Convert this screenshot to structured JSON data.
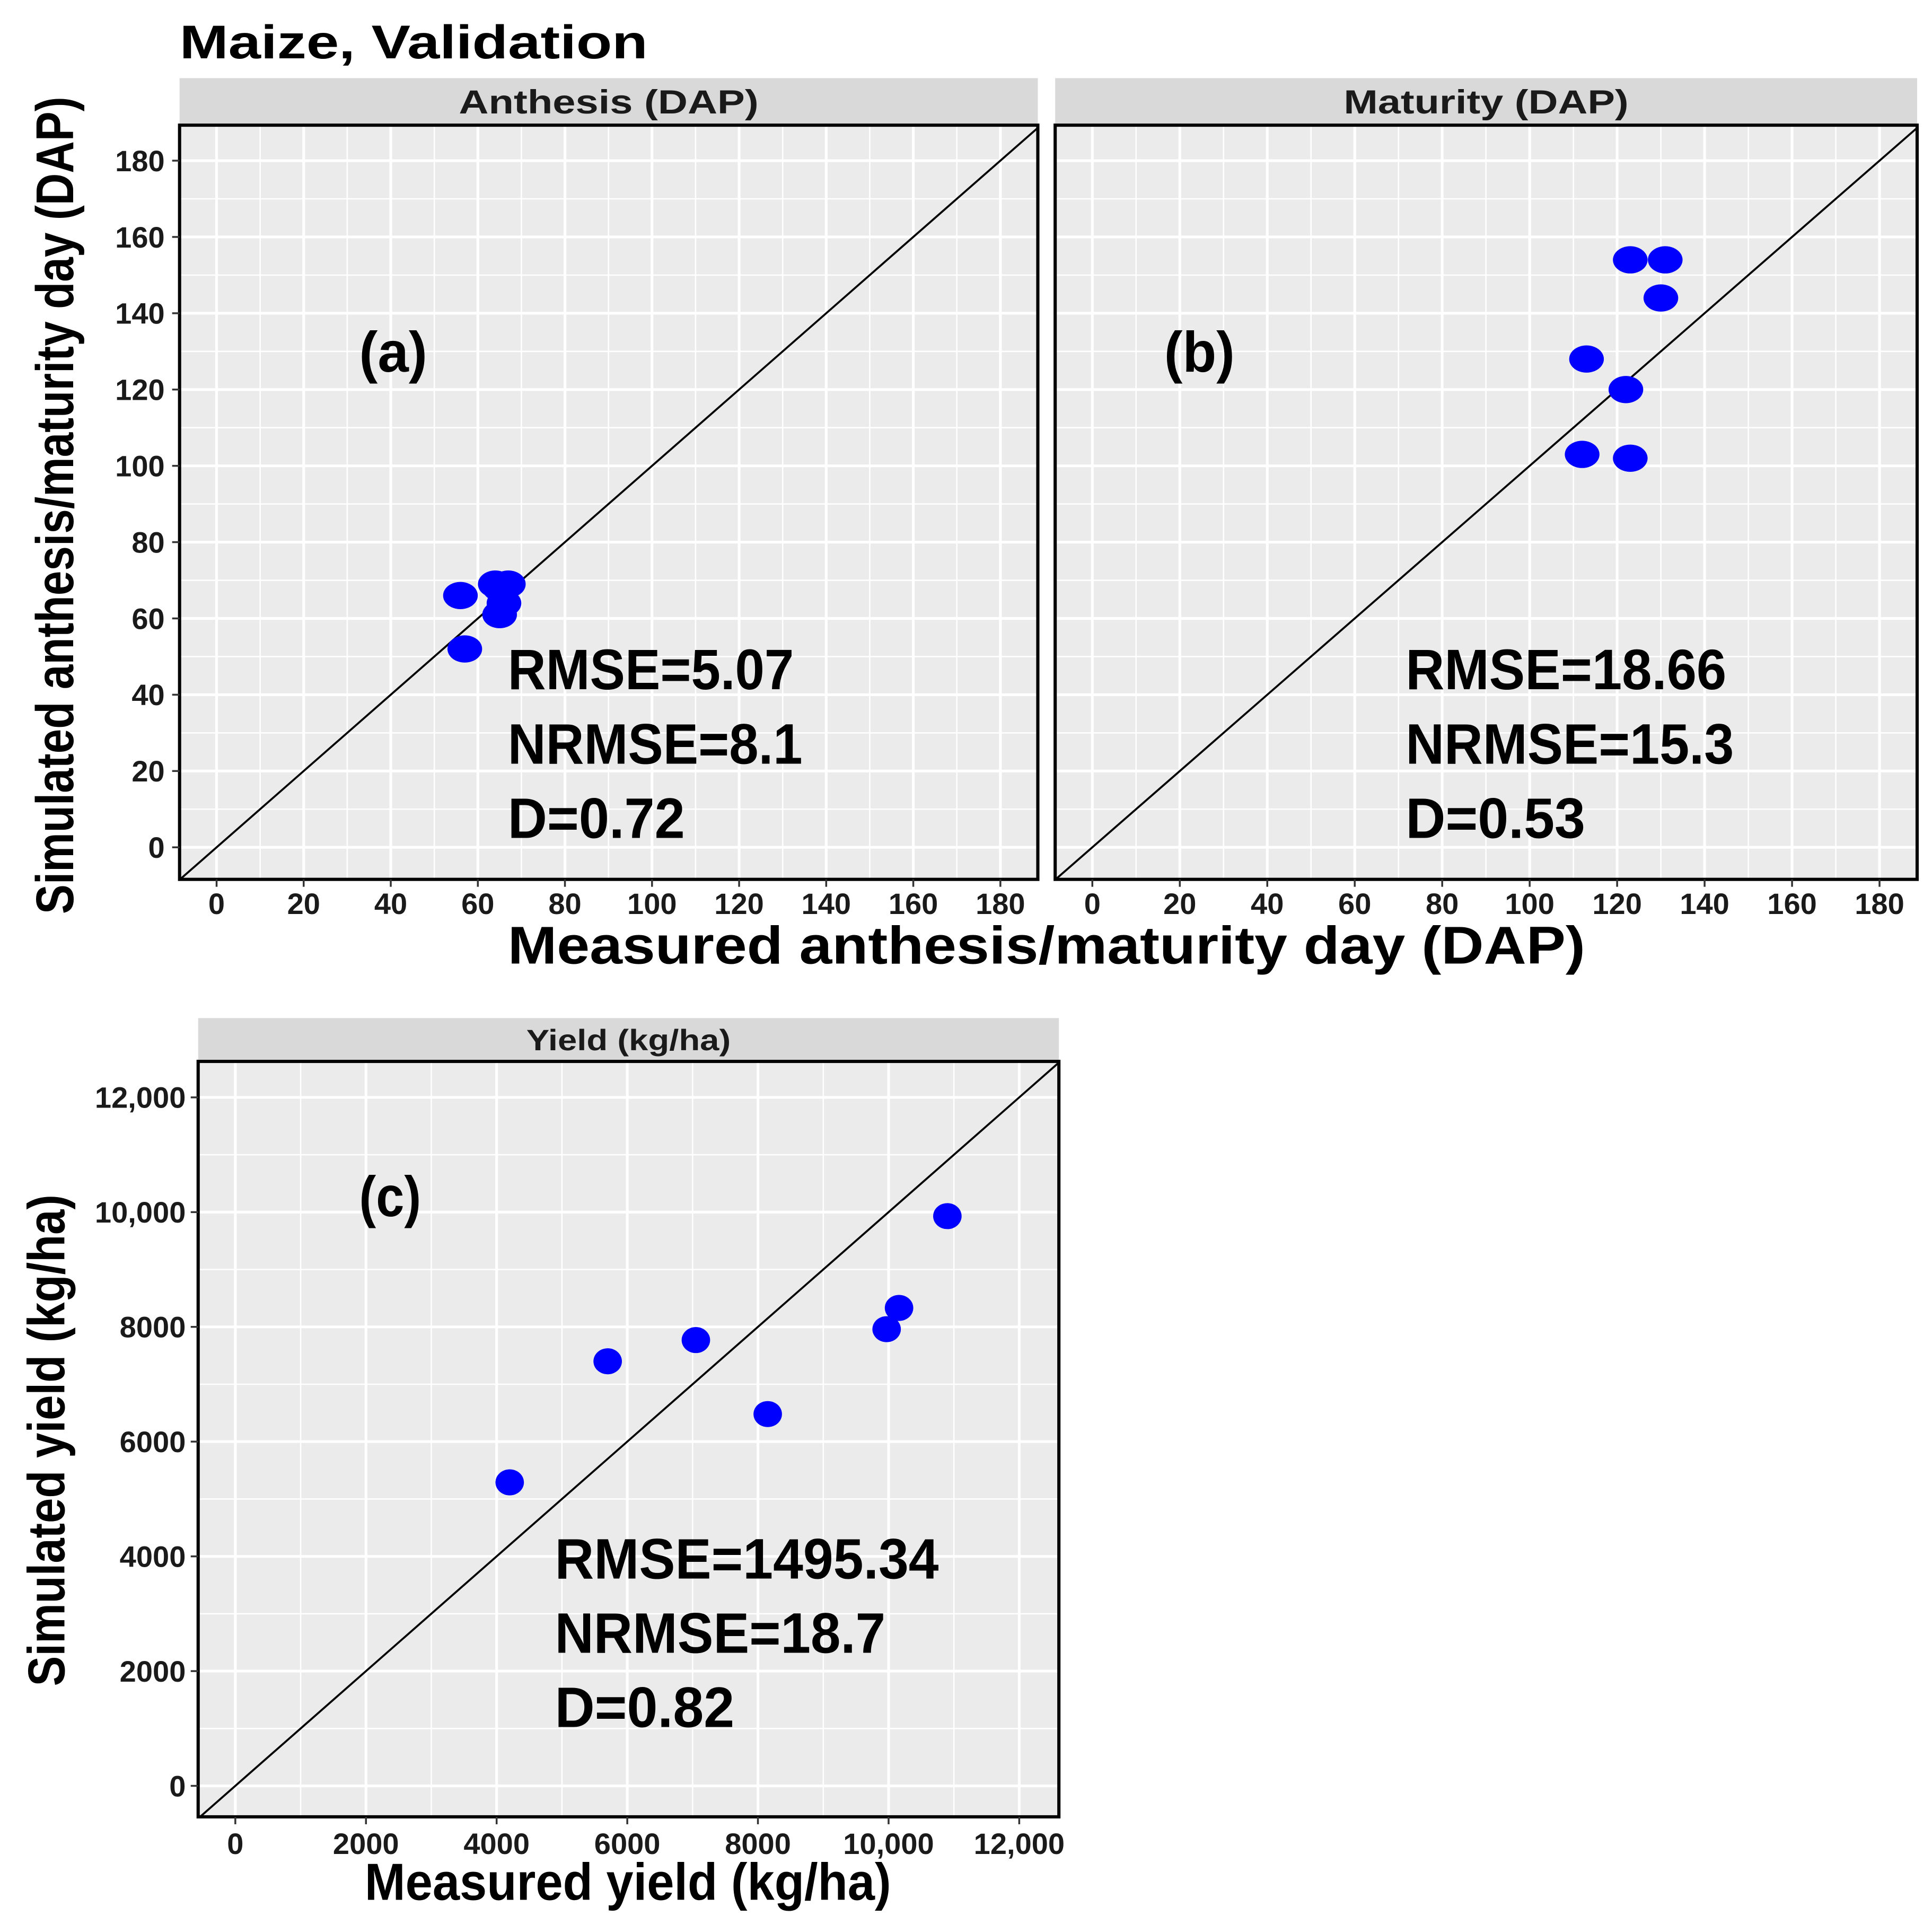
{
  "figure": {
    "title": "Maize, Validation"
  },
  "colors": {
    "point": "#0000ff",
    "panel_bg": "#ebebeb",
    "strip_bg": "#d9d9d9",
    "grid": "#ffffff",
    "reference_line": "#000000",
    "border": "#000000",
    "tick_mark": "#333333"
  },
  "chart_data": [
    {
      "type": "scatter",
      "label": "(a)",
      "facet": "Anthesis (DAP)",
      "xlabel": "Measured anthesis/maturity day (DAP)",
      "ylabel": "Simulated anthesis/maturity day (DAP)",
      "xlim": [
        -8.5,
        188.6
      ],
      "ylim": [
        -8.4,
        189.3
      ],
      "xticks": {
        "values": [
          0,
          20,
          40,
          60,
          80,
          100,
          120,
          140,
          160,
          180
        ],
        "labels": [
          "0",
          "20",
          "40",
          "60",
          "80",
          "100",
          "120",
          "140",
          "160",
          "180"
        ]
      },
      "yticks": {
        "values": [
          0,
          20,
          40,
          60,
          80,
          100,
          120,
          140,
          160,
          180
        ],
        "labels": [
          "0",
          "20",
          "40",
          "60",
          "80",
          "100",
          "120",
          "140",
          "160",
          "180"
        ]
      },
      "reference_line": {
        "slope": 1,
        "intercept": 0
      },
      "points": {
        "x": [
          56,
          57,
          64,
          67,
          65,
          66,
          65
        ],
        "y": [
          66,
          52,
          69,
          69,
          61,
          64,
          68
        ]
      },
      "stats": [
        "RMSE=5.07",
        "NRMSE=8.1",
        "D=0.72"
      ]
    },
    {
      "type": "scatter",
      "label": "(b)",
      "facet": "Maturity (DAP)",
      "xlim": [
        -8.5,
        188.6
      ],
      "ylim": [
        -8.4,
        189.3
      ],
      "xticks": {
        "values": [
          0,
          20,
          40,
          60,
          80,
          100,
          120,
          140,
          160,
          180
        ],
        "labels": [
          "0",
          "20",
          "40",
          "60",
          "80",
          "100",
          "120",
          "140",
          "160",
          "180"
        ]
      },
      "yticks": {
        "values": [
          0,
          20,
          40,
          60,
          80,
          100,
          120,
          140,
          160,
          180
        ]
      },
      "reference_line": {
        "slope": 1,
        "intercept": 0
      },
      "points": {
        "x": [
          123,
          131,
          130,
          113,
          122,
          112,
          123
        ],
        "y": [
          154,
          154,
          144,
          128,
          120,
          103,
          102
        ]
      },
      "stats": [
        "RMSE=18.66",
        "NRMSE=15.3",
        "D=0.53"
      ]
    },
    {
      "type": "scatter",
      "label": "(c)",
      "facet": "Yield (kg/ha)",
      "xlabel": "Measured yield (kg/ha)",
      "ylabel": "Simulated yield (kg/ha)",
      "xlim": [
        -569,
        12607
      ],
      "ylim": [
        -540,
        12627
      ],
      "xticks": {
        "values": [
          0,
          2000,
          4000,
          6000,
          8000,
          10000,
          12000
        ],
        "labels": [
          "0",
          "2000",
          "4000",
          "6000",
          "8000",
          "10,000",
          "12,000"
        ]
      },
      "yticks": {
        "values": [
          0,
          2000,
          4000,
          6000,
          8000,
          10000,
          12000
        ],
        "labels": [
          "0",
          "2000",
          "4000",
          "6000",
          "8000",
          "10,000",
          "12,000"
        ]
      },
      "reference_line": {
        "slope": 1,
        "intercept": 0
      },
      "points": {
        "x": [
          4200,
          5700,
          7050,
          8150,
          9970,
          10160,
          10900
        ],
        "y": [
          5290,
          7400,
          7770,
          6480,
          7960,
          8330,
          9930
        ]
      },
      "stats": [
        "RMSE=1495.34",
        "NRMSE=18.7",
        "D=0.82"
      ]
    }
  ]
}
